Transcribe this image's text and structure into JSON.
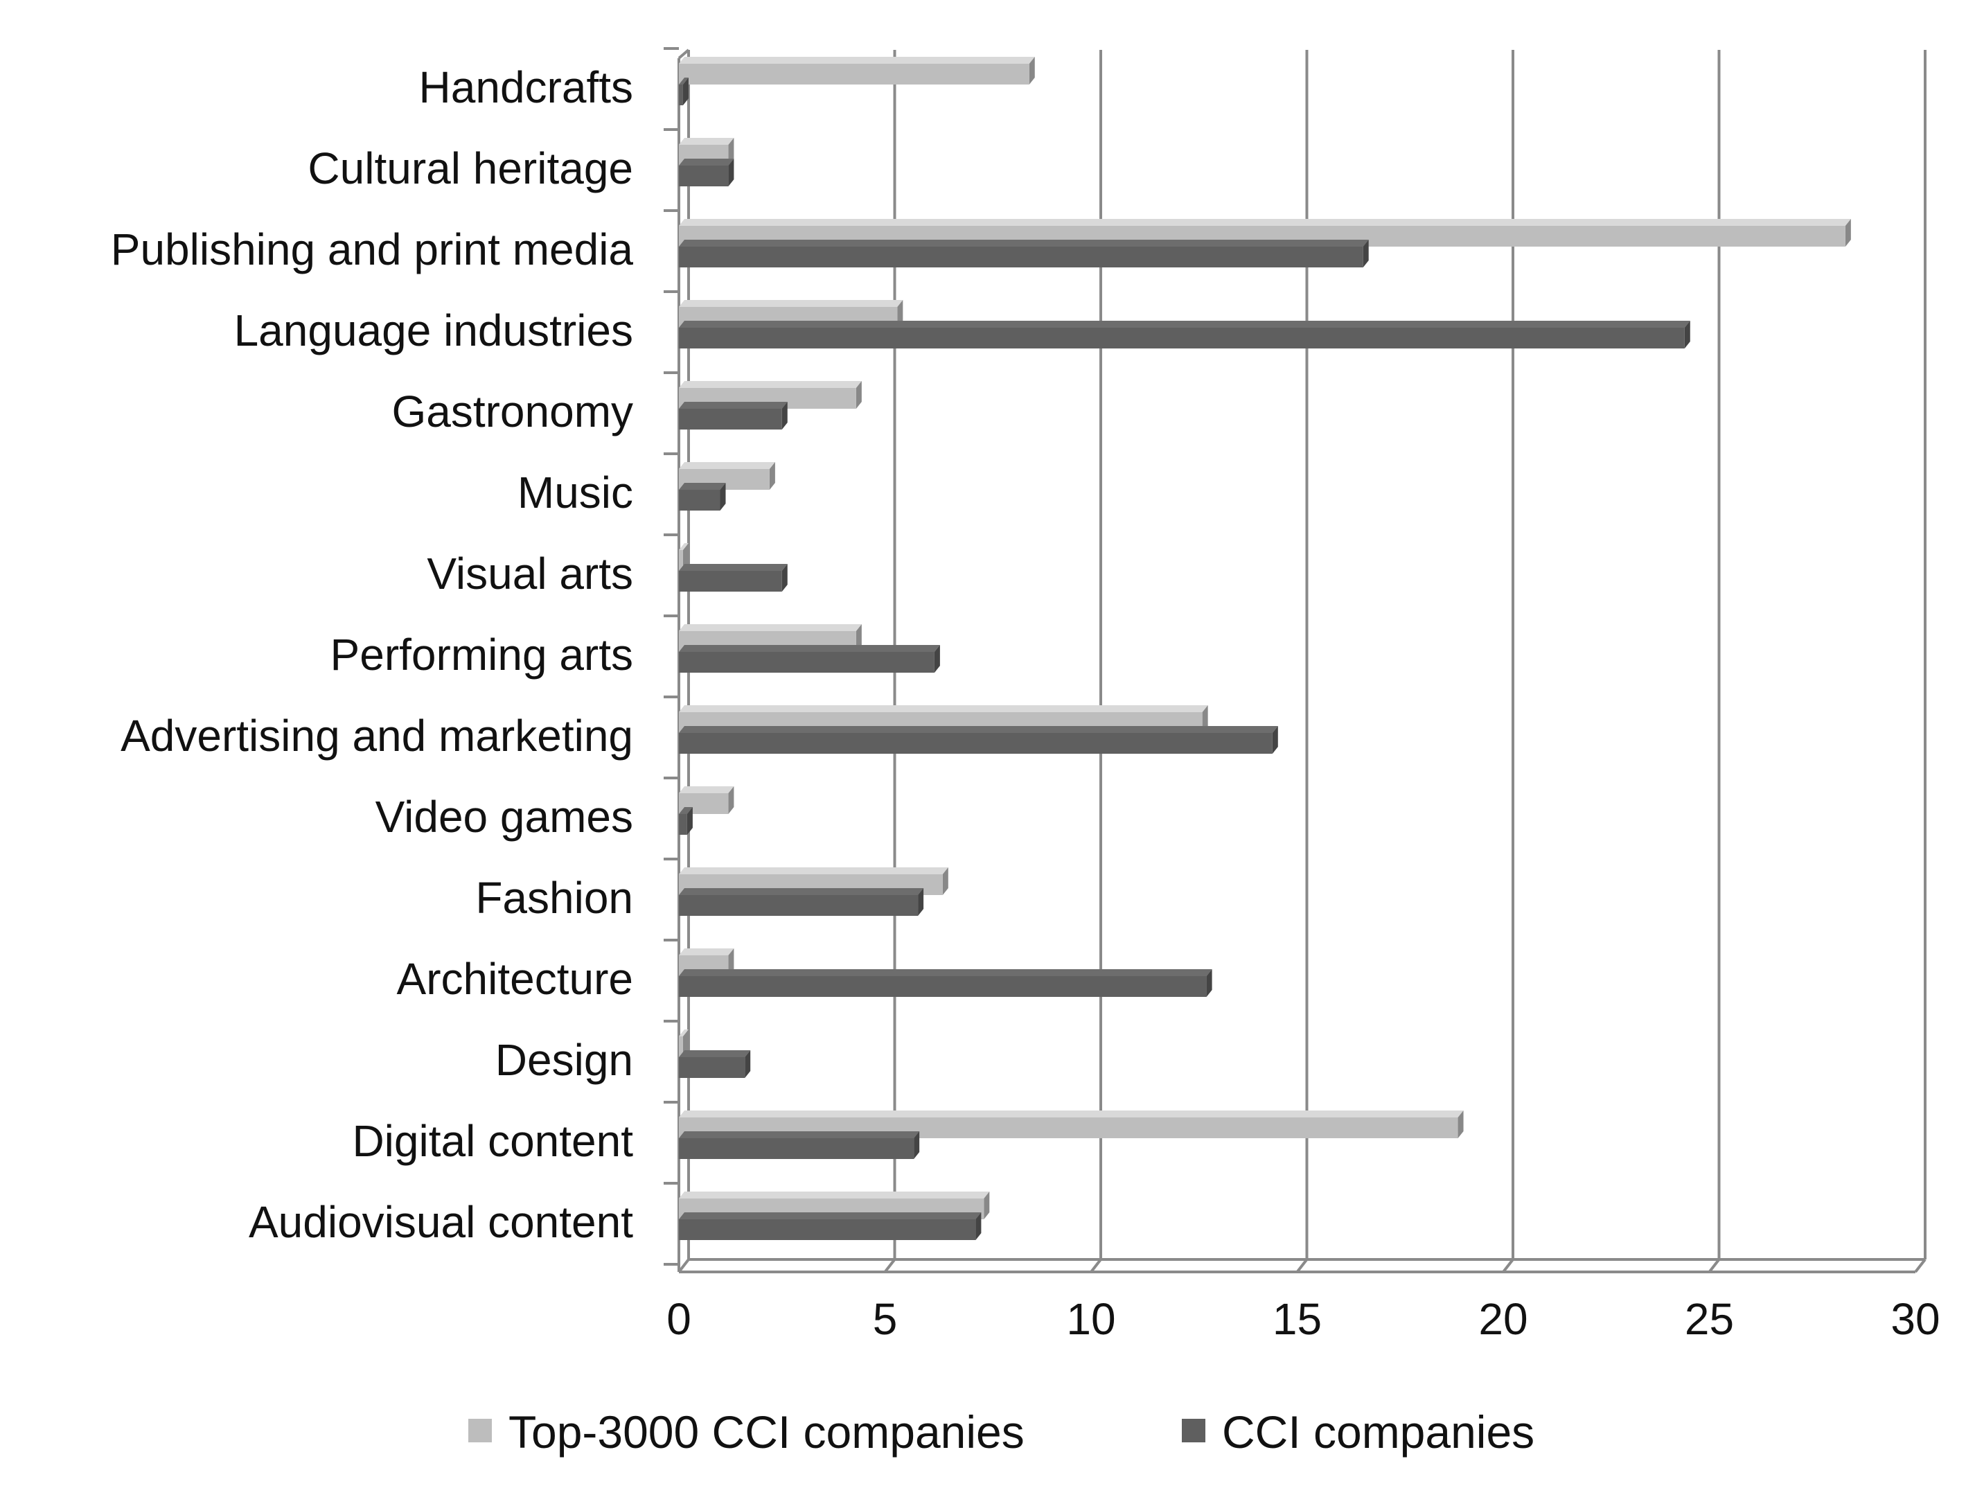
{
  "chart_data": {
    "type": "bar",
    "orientation": "horizontal",
    "style": "3d",
    "categories": [
      "Handcrafts",
      "Cultural heritage",
      "Publishing and print media",
      "Language industries",
      "Gastronomy",
      "Music",
      "Visual arts",
      "Performing arts",
      "Advertising and marketing",
      "Video games",
      "Fashion",
      "Architecture",
      "Design",
      "Digital content",
      "Audiovisual content"
    ],
    "series": [
      {
        "name": "Top-3000 CCI companies",
        "color": "#bdbdbd",
        "values": [
          8.5,
          1.2,
          28.3,
          5.3,
          4.3,
          2.2,
          0.1,
          4.3,
          12.7,
          1.2,
          6.4,
          1.2,
          0.1,
          18.9,
          7.4
        ]
      },
      {
        "name": "CCI companies",
        "color": "#5f5f5f",
        "values": [
          0.1,
          1.2,
          16.6,
          24.4,
          2.5,
          1.0,
          2.5,
          6.2,
          14.4,
          0.2,
          5.8,
          12.8,
          1.6,
          5.7,
          7.2
        ]
      }
    ],
    "xlim": [
      0,
      30
    ],
    "xticks": [
      "0",
      "5",
      "10",
      "15",
      "20",
      "25",
      "30"
    ],
    "grid": true,
    "legend": "bottom"
  }
}
